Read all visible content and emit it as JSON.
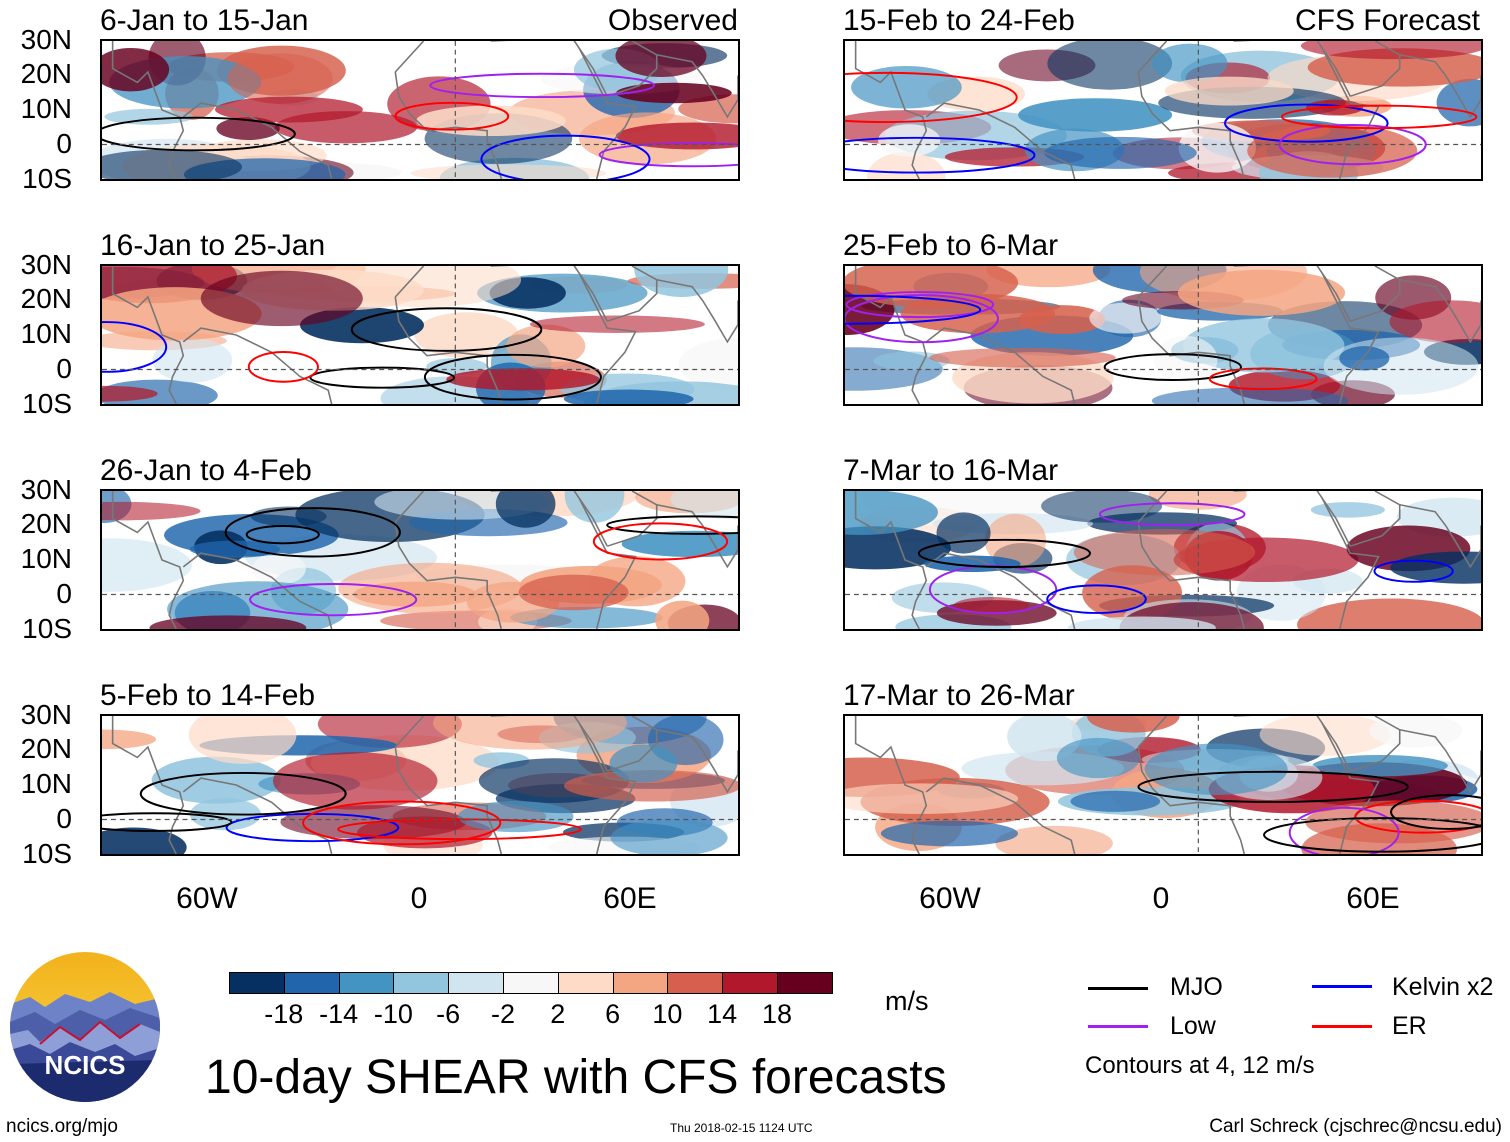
{
  "panels": [
    {
      "period": "6-Jan to 15-Jan",
      "tag": "Observed",
      "seed": 1
    },
    {
      "period": "16-Jan to 25-Jan",
      "tag": "",
      "seed": 2
    },
    {
      "period": "26-Jan to 4-Feb",
      "tag": "",
      "seed": 3
    },
    {
      "period": "5-Feb to 14-Feb",
      "tag": "",
      "seed": 4
    },
    {
      "period": "15-Feb to 24-Feb",
      "tag": "CFS Forecast",
      "seed": 5
    },
    {
      "period": "25-Feb to 6-Mar",
      "tag": "",
      "seed": 6
    },
    {
      "period": "7-Mar to 16-Mar",
      "tag": "",
      "seed": 7
    },
    {
      "period": "17-Mar to 26-Mar",
      "tag": "",
      "seed": 8
    }
  ],
  "lat_labels": [
    "30N",
    "20N",
    "10N",
    "0",
    "10S"
  ],
  "lon_labels": [
    "60W",
    "0",
    "60E"
  ],
  "colorbar": {
    "labels": [
      "-18",
      "-14",
      "-10",
      "-6",
      "-2",
      "2",
      "6",
      "10",
      "14",
      "18"
    ],
    "colors": [
      "#053061",
      "#2166ac",
      "#4393c3",
      "#92c5de",
      "#d1e5f0",
      "#f7f7f7",
      "#fddbc7",
      "#f4a582",
      "#d6604d",
      "#b2182b",
      "#67001f"
    ],
    "units": "m/s"
  },
  "legend": {
    "items": [
      {
        "label": "MJO",
        "color": "#000000"
      },
      {
        "label": "Kelvin x2",
        "color": "#0000ff"
      },
      {
        "label": "Low",
        "color": "#a020f0"
      },
      {
        "label": "ER",
        "color": "#ff0000"
      }
    ],
    "note": "Contours at 4, 12 m/s"
  },
  "title": "10-day SHEAR with CFS forecasts",
  "logo_text": "NCICS",
  "footer": {
    "left": "ncics.org/mjo",
    "middle": "Thu 2018-02-15 1124 UTC",
    "right": "Carl Schreck (cjschrec@ncsu.edu)"
  }
}
